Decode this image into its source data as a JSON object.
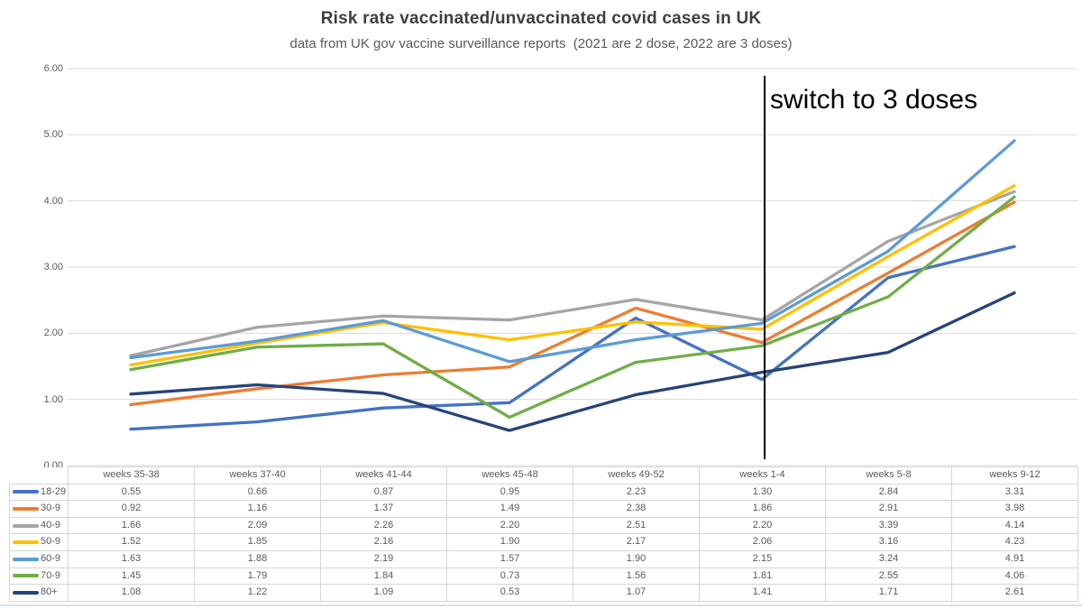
{
  "chart_data": {
    "type": "line",
    "title": "Risk rate vaccinated/unvaccinated covid cases in UK",
    "subtitle": "data from UK gov vaccine surveillance reports  (2021 are 2 dose, 2022 are 3 doses)",
    "categories": [
      "weeks 35-38",
      "weeks 37-40",
      "weeks 41-44",
      "weeks 45-48",
      "weeks 49-52",
      "weeks 1-4",
      "weeks 5-8",
      "weeks 9-12"
    ],
    "series": [
      {
        "name": "18-29",
        "color": "#4472C4",
        "values": [
          0.55,
          0.66,
          0.87,
          0.95,
          2.23,
          1.3,
          2.84,
          3.31
        ]
      },
      {
        "name": "30-9",
        "color": "#ED7D31",
        "values": [
          0.92,
          1.16,
          1.37,
          1.49,
          2.38,
          1.86,
          2.91,
          3.98
        ]
      },
      {
        "name": "40-9",
        "color": "#A5A5A5",
        "values": [
          1.66,
          2.09,
          2.26,
          2.2,
          2.51,
          2.2,
          3.39,
          4.14
        ]
      },
      {
        "name": "50-9",
        "color": "#FFC000",
        "values": [
          1.52,
          1.85,
          2.16,
          1.9,
          2.17,
          2.06,
          3.16,
          4.23
        ]
      },
      {
        "name": "60-9",
        "color": "#5B9BD5",
        "values": [
          1.63,
          1.88,
          2.19,
          1.57,
          1.9,
          2.15,
          3.24,
          4.91
        ]
      },
      {
        "name": "70-9",
        "color": "#70AD47",
        "values": [
          1.45,
          1.79,
          1.84,
          0.73,
          1.56,
          1.81,
          2.55,
          4.06
        ]
      },
      {
        "name": "80+",
        "color": "#264478",
        "values": [
          1.08,
          1.22,
          1.09,
          0.53,
          1.07,
          1.41,
          1.71,
          2.61
        ]
      }
    ],
    "ylim": [
      0,
      6
    ],
    "y_ticks": [
      "0.00",
      "1.00",
      "2.00",
      "3.00",
      "4.00",
      "5.00",
      "6.00"
    ],
    "grid": "horizontal",
    "gridline_color": "#D9D9D9",
    "legend_position": "data-table-left",
    "value_format": "2-decimals",
    "annotation": {
      "text": "switch to 3 doses",
      "category": "weeks 1-4",
      "category_index": 5,
      "line_color": "#000000"
    }
  }
}
